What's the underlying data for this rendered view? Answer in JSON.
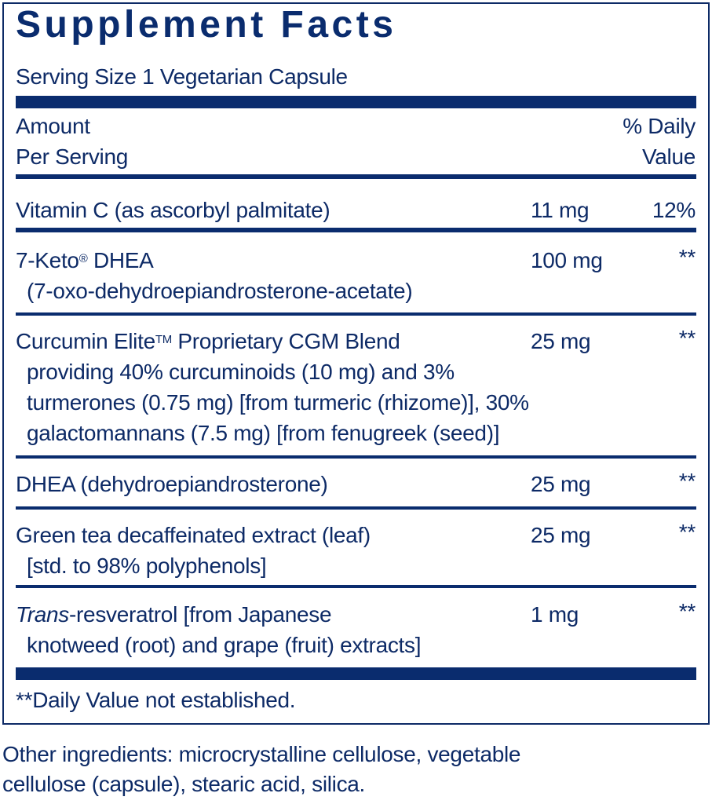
{
  "title": "Supplement Facts",
  "serving_size": "Serving Size 1 Vegetarian Capsule",
  "header": {
    "amount_line1": "Amount",
    "amount_line2": "Per Serving",
    "dv_line1": "% Daily",
    "dv_line2": "Value"
  },
  "rows": [
    {
      "name": "Vitamin C (as ascorbyl palmitate)",
      "amount": "11 mg",
      "dv": "12%"
    },
    {
      "name": "7-Keto",
      "mark": "®",
      "name_rest": " DHEA",
      "sub": [
        "(7-oxo-dehydroepiandrosterone-acetate)"
      ],
      "amount": "100 mg",
      "dv": "**"
    },
    {
      "name": "Curcumin Elite",
      "mark": "TM",
      "name_rest": " Proprietary CGM Blend",
      "sub": [
        "providing 40% curcuminoids (10 mg) and 3%",
        "turmerones (0.75 mg) [from turmeric (rhizome)], 30%",
        "galactomannans (7.5 mg) [from fenugreek (seed)]"
      ],
      "amount": "25 mg",
      "dv": "**"
    },
    {
      "name": "DHEA (dehydroepiandrosterone)",
      "amount": "25 mg",
      "dv": "**"
    },
    {
      "name": "Green tea decaffeinated extract (leaf)",
      "sub": [
        "[std. to 98% polyphenols]"
      ],
      "amount": "25 mg",
      "dv": "**"
    },
    {
      "name_italic": "Trans",
      "name_rest": "-resveratrol [from Japanese",
      "sub": [
        "knotweed (root) and grape (fruit) extracts]"
      ],
      "amount": "1 mg",
      "dv": "**"
    }
  ],
  "footnote": "**Daily Value not established.",
  "other_ingredients": [
    "Other ingredients: microcrystalline cellulose, vegetable",
    "cellulose (capsule), stearic acid, silica."
  ],
  "colors": {
    "brand": "#0a2c6e"
  }
}
